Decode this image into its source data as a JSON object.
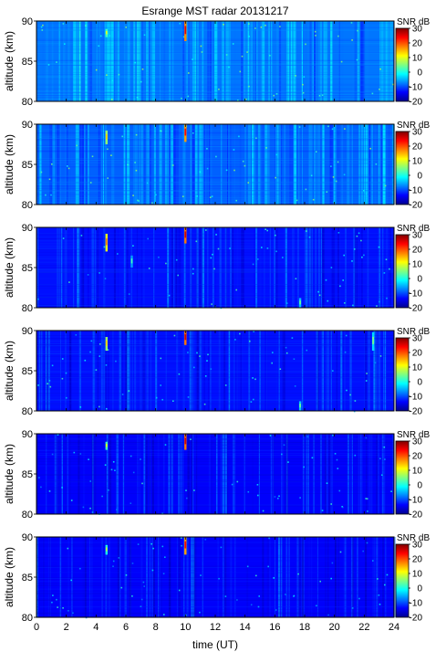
{
  "chart_data": {
    "type": "heatmap",
    "title": "Esrange MST radar 20131217",
    "xlabel": "time (UT)",
    "ylabel": "altitude (km)",
    "xlim": [
      0,
      24
    ],
    "ylim": [
      80,
      90
    ],
    "x_ticks": [
      0,
      2,
      4,
      6,
      8,
      10,
      12,
      14,
      16,
      18,
      20,
      22,
      24
    ],
    "y_ticks": [
      80,
      85,
      90
    ],
    "colorbar": {
      "label": "SNR dB",
      "range": [
        -20,
        30
      ],
      "ticks": [
        -20,
        -10,
        0,
        10,
        20,
        30
      ],
      "colormap": "jet",
      "stops": [
        "#00008f",
        "#0000ff",
        "#0080ff",
        "#00ffff",
        "#80ff80",
        "#ffff00",
        "#ff8000",
        "#ff0000",
        "#800000"
      ]
    },
    "panels": [
      {
        "name": "",
        "background_snr": -8,
        "features": [
          {
            "x": 4.7,
            "y0": 88.0,
            "y1": 89.0,
            "snr": 10
          },
          {
            "x": 10.0,
            "y0": 87.5,
            "y1": 90.0,
            "snr": 25
          }
        ]
      },
      {
        "name": "",
        "background_snr": -9,
        "features": [
          {
            "x": 4.7,
            "y0": 87.5,
            "y1": 89.2,
            "snr": 14
          },
          {
            "x": 10.0,
            "y0": 87.8,
            "y1": 90.0,
            "snr": 24
          }
        ]
      },
      {
        "name": "",
        "background_snr": -13,
        "features": [
          {
            "x": 4.7,
            "y0": 87.0,
            "y1": 89.2,
            "snr": 18
          },
          {
            "x": 6.4,
            "y0": 85.0,
            "y1": 86.5,
            "snr": 2
          },
          {
            "x": 10.0,
            "y0": 88.0,
            "y1": 90.0,
            "snr": 26
          },
          {
            "x": 17.7,
            "y0": 80.0,
            "y1": 81.2,
            "snr": 4
          }
        ]
      },
      {
        "name": "",
        "background_snr": -13,
        "features": [
          {
            "x": 4.7,
            "y0": 87.5,
            "y1": 89.2,
            "snr": 14
          },
          {
            "x": 10.0,
            "y0": 88.2,
            "y1": 90.0,
            "snr": 26
          },
          {
            "x": 17.7,
            "y0": 80.0,
            "y1": 81.2,
            "snr": 4
          },
          {
            "x": 22.6,
            "y0": 87.5,
            "y1": 89.8,
            "snr": 5
          }
        ]
      },
      {
        "name": "",
        "background_snr": -14,
        "features": [
          {
            "x": 4.7,
            "y0": 88.0,
            "y1": 89.0,
            "snr": 10
          },
          {
            "x": 10.0,
            "y0": 88.0,
            "y1": 90.0,
            "snr": 26
          }
        ]
      },
      {
        "name": "",
        "background_snr": -14,
        "features": [
          {
            "x": 4.7,
            "y0": 87.8,
            "y1": 89.0,
            "snr": 8
          },
          {
            "x": 10.0,
            "y0": 87.8,
            "y1": 90.0,
            "snr": 24
          }
        ]
      }
    ]
  }
}
